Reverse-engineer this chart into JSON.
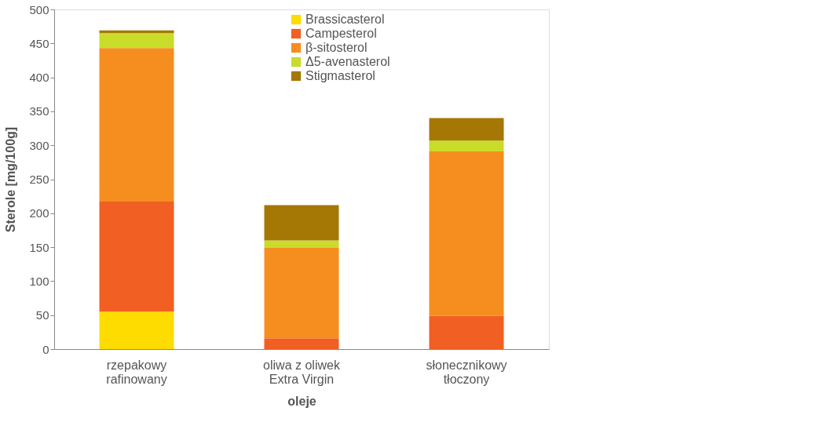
{
  "chart_data": {
    "type": "bar",
    "stacked": true,
    "xlabel": "oleje",
    "ylabel": "Sterole [mg/100g]",
    "categories": [
      "rzepakowy\nrafinowany",
      "oliwa z oliwek\nExtra Virgin",
      "słonecznikowy\ntłoczony"
    ],
    "series": [
      {
        "name": "Brassicasterol",
        "color": "#fedc00",
        "values": [
          55,
          0,
          0
        ]
      },
      {
        "name": "Campesterol",
        "color": "#f15f22",
        "values": [
          162,
          16,
          49
        ]
      },
      {
        "name": "β-sitosterol",
        "color": "#f68e1f",
        "values": [
          226,
          133,
          242
        ]
      },
      {
        "name": "Δ5-avenasterol",
        "color": "#c9dc2a",
        "values": [
          22,
          11,
          16
        ]
      },
      {
        "name": "Stigmasterol",
        "color": "#a57704",
        "values": [
          4,
          52,
          33
        ]
      }
    ],
    "ylim": [
      0,
      500
    ],
    "yticks": [
      0,
      50,
      100,
      150,
      200,
      250,
      300,
      350,
      400,
      450,
      500
    ],
    "grid": false,
    "legend": "top"
  }
}
